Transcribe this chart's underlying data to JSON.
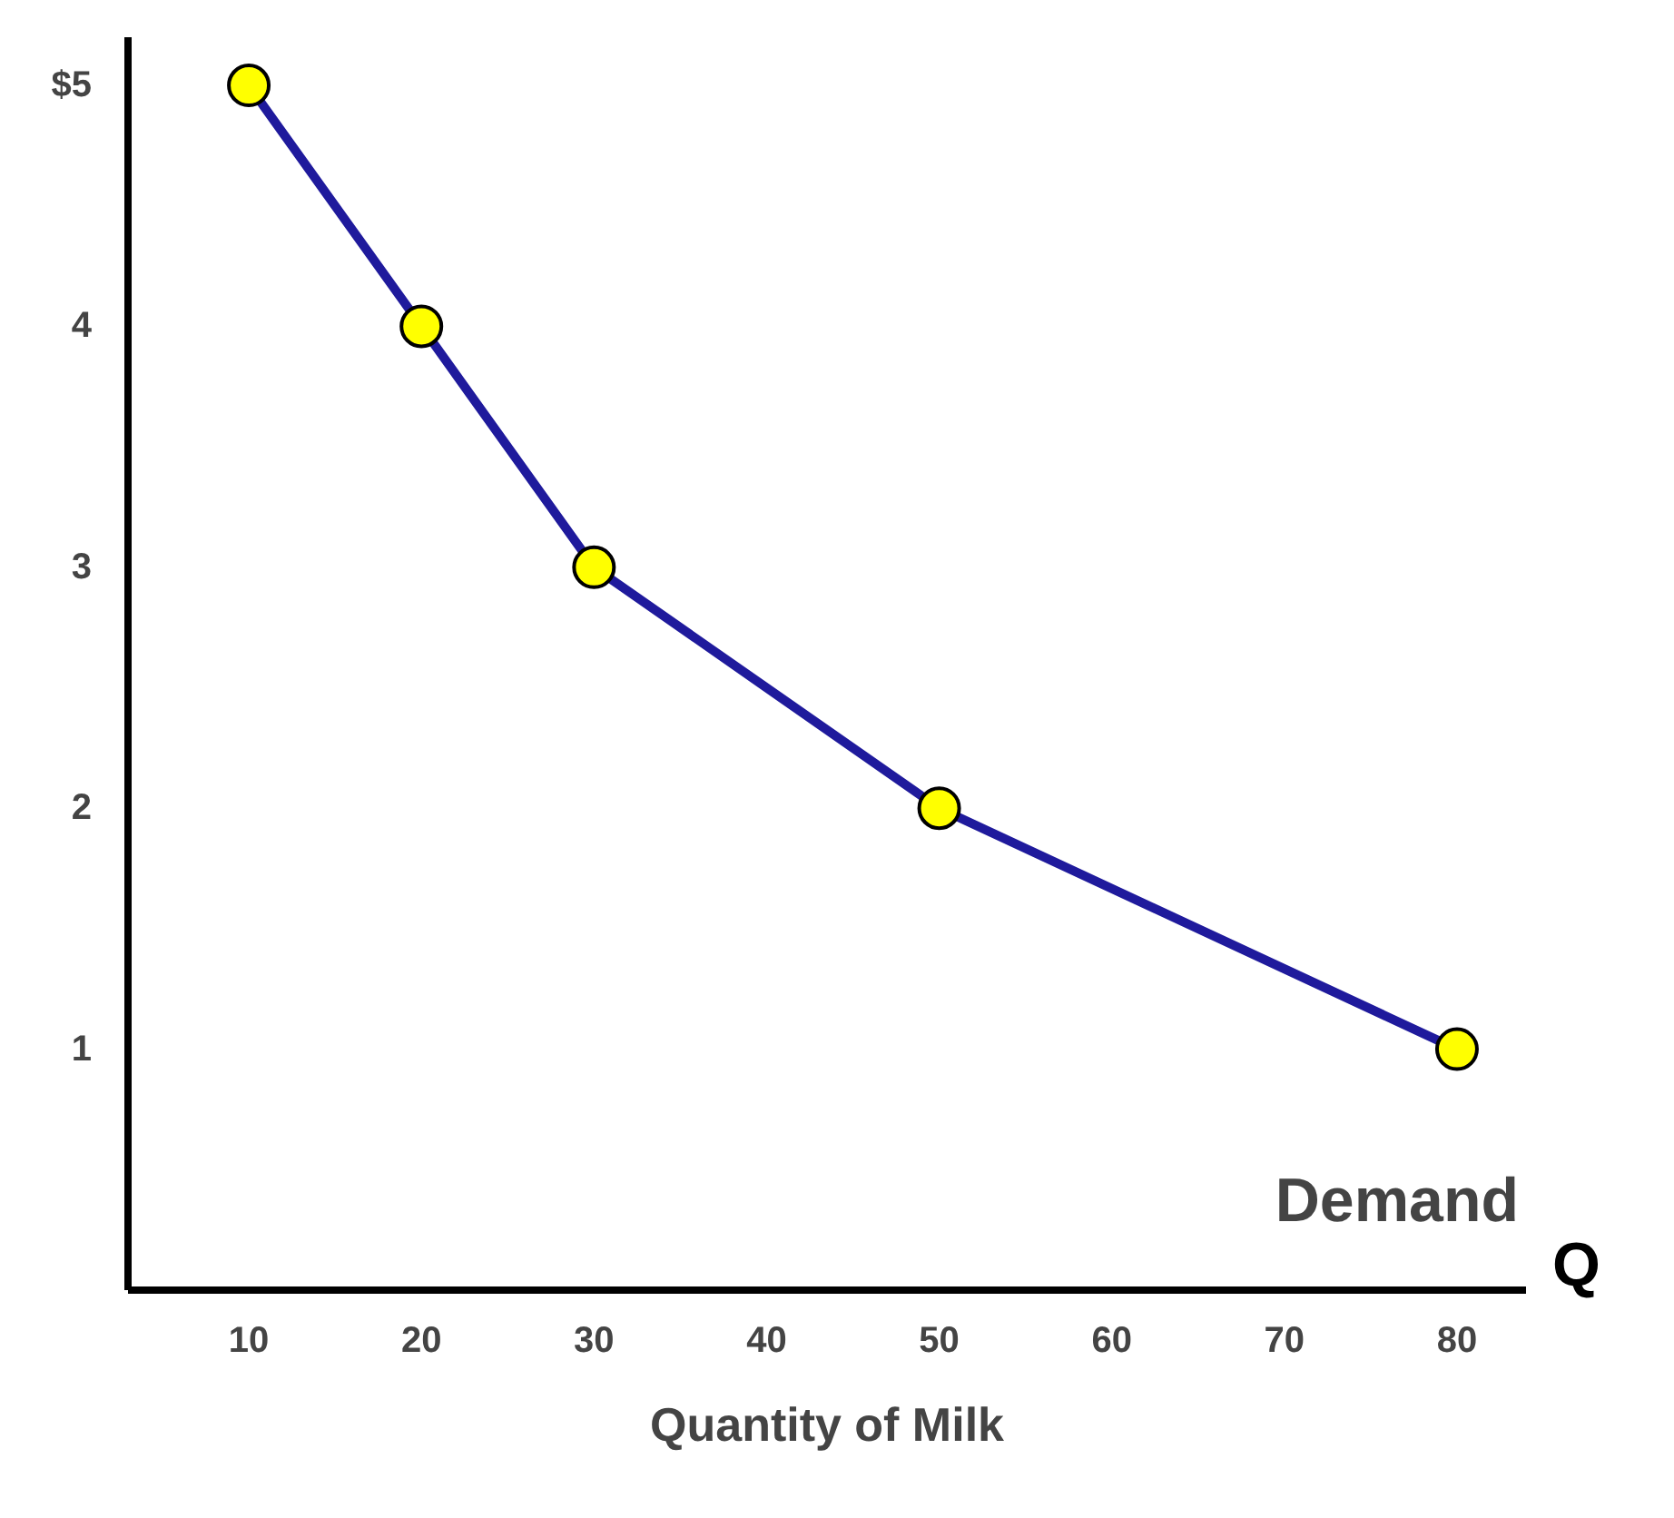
{
  "chart_data": {
    "type": "line",
    "xlabel": "Quantity of Milk",
    "x": [
      10,
      20,
      30,
      50,
      80
    ],
    "series": [
      {
        "color": "#1f1a9c",
        "values": [
          5,
          4,
          3,
          2,
          1
        ]
      }
    ],
    "marker": "circle",
    "line_style": "solid",
    "grid": false,
    "xlim": [
      3,
      84
    ],
    "ylim": [
      0,
      5.2
    ],
    "xticks": [
      10,
      20,
      30,
      40,
      50,
      60,
      70,
      80
    ],
    "yticks": [
      {
        "value": 1,
        "label": "1"
      },
      {
        "value": 2,
        "label": "2"
      },
      {
        "value": 3,
        "label": "3"
      },
      {
        "value": 4,
        "label": "4"
      },
      {
        "value": 5,
        "label": "$5"
      }
    ],
    "annotations": [
      "Demand",
      "Q"
    ]
  }
}
